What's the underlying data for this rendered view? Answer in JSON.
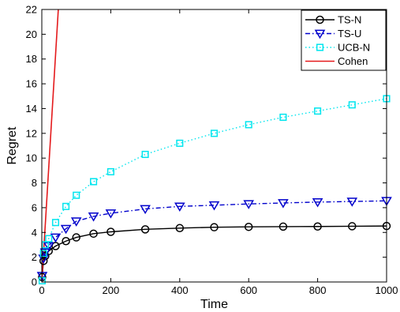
{
  "chart_data": {
    "type": "line",
    "xlabel": "Time",
    "ylabel": "Regret",
    "xlim": [
      0,
      1000
    ],
    "ylim": [
      0,
      22
    ],
    "xticks": [
      0,
      200,
      400,
      600,
      800,
      1000
    ],
    "yticks": [
      0,
      2,
      4,
      6,
      8,
      10,
      12,
      14,
      16,
      18,
      20,
      22
    ],
    "grid": false,
    "legend_position": "top-right",
    "series": [
      {
        "name": "TS-N",
        "color": "#000000",
        "line_style": "solid",
        "marker": "circle",
        "x": [
          1,
          5,
          10,
          20,
          40,
          70,
          100,
          150,
          200,
          300,
          400,
          500,
          600,
          700,
          800,
          900,
          1000
        ],
        "y": [
          0.4,
          1.7,
          2.1,
          2.5,
          2.9,
          3.3,
          3.6,
          3.9,
          4.05,
          4.25,
          4.35,
          4.42,
          4.45,
          4.47,
          4.48,
          4.5,
          4.52
        ]
      },
      {
        "name": "TS-U",
        "color": "#0000CC",
        "line_style": "dashdot",
        "marker": "triangle-down",
        "x": [
          1,
          5,
          10,
          20,
          40,
          70,
          100,
          150,
          200,
          300,
          400,
          500,
          600,
          700,
          800,
          900,
          1000
        ],
        "y": [
          0.5,
          1.9,
          2.4,
          2.9,
          3.6,
          4.3,
          4.9,
          5.3,
          5.55,
          5.9,
          6.1,
          6.2,
          6.3,
          6.38,
          6.45,
          6.5,
          6.55
        ]
      },
      {
        "name": "UCB-N",
        "color": "#00E5EE",
        "line_style": "dotted",
        "marker": "square",
        "x": [
          1,
          5,
          10,
          20,
          40,
          70,
          100,
          150,
          200,
          300,
          400,
          500,
          600,
          700,
          800,
          900,
          1000
        ],
        "y": [
          0.1,
          2.3,
          3.0,
          3.5,
          4.8,
          6.1,
          7.0,
          8.1,
          8.9,
          10.3,
          11.2,
          12.0,
          12.7,
          13.3,
          13.8,
          14.3,
          14.8
        ]
      },
      {
        "name": "Cohen",
        "color": "#E41A1C",
        "line_style": "solid",
        "marker": "none",
        "x": [
          0,
          50
        ],
        "y": [
          0,
          23
        ]
      }
    ]
  }
}
